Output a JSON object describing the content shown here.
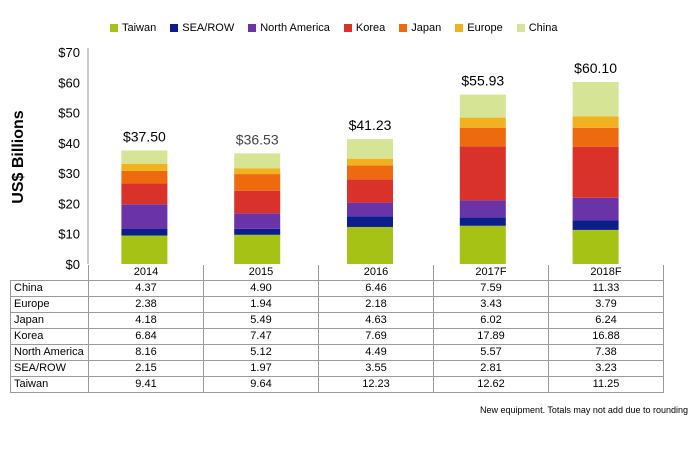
{
  "chart_data": {
    "type": "bar",
    "stacked": true,
    "ylabel": "US$ Billions",
    "ylim": [
      0,
      70
    ],
    "yticks": [
      "$0",
      "$10",
      "$20",
      "$30",
      "$40",
      "$50",
      "$60",
      "$70"
    ],
    "categories": [
      "2014",
      "2015",
      "2016",
      "2017F",
      "2018F"
    ],
    "totals": [
      "$37.50",
      "$36.53",
      "$41.23",
      "$55.93",
      "$60.10"
    ],
    "legend_position": "top",
    "series": [
      {
        "name": "Taiwan",
        "color": "#a6c214",
        "values": [
          9.41,
          9.64,
          12.23,
          12.62,
          11.25
        ]
      },
      {
        "name": "SEA/ROW",
        "color": "#0c1e8c",
        "values": [
          2.15,
          1.97,
          3.55,
          2.81,
          3.23
        ]
      },
      {
        "name": "North America",
        "color": "#6a34a8",
        "values": [
          8.16,
          5.12,
          4.49,
          5.57,
          7.38
        ]
      },
      {
        "name": "Korea",
        "color": "#d8322a",
        "values": [
          6.84,
          7.47,
          7.69,
          17.89,
          16.88
        ]
      },
      {
        "name": "Japan",
        "color": "#ee6a0e",
        "values": [
          4.18,
          5.49,
          4.63,
          6.02,
          6.24
        ]
      },
      {
        "name": "Europe",
        "color": "#f0b21e",
        "values": [
          2.38,
          1.94,
          2.18,
          3.43,
          3.79
        ]
      },
      {
        "name": "China",
        "color": "#d6e496",
        "values": [
          4.37,
          4.9,
          6.46,
          7.59,
          11.33
        ]
      }
    ],
    "table": {
      "row_order": [
        "China",
        "Europe",
        "Japan",
        "Korea",
        "North America",
        "SEA/ROW",
        "Taiwan"
      ],
      "rows": [
        {
          "label": "China",
          "cells": [
            "4.37",
            "4.90",
            "6.46",
            "7.59",
            "11.33"
          ]
        },
        {
          "label": "Europe",
          "cells": [
            "2.38",
            "1.94",
            "2.18",
            "3.43",
            "3.79"
          ]
        },
        {
          "label": "Japan",
          "cells": [
            "4.18",
            "5.49",
            "4.63",
            "6.02",
            "6.24"
          ]
        },
        {
          "label": "Korea",
          "cells": [
            "6.84",
            "7.47",
            "7.69",
            "17.89",
            "16.88"
          ]
        },
        {
          "label": "North America",
          "cells": [
            "8.16",
            "5.12",
            "4.49",
            "5.57",
            "7.38"
          ]
        },
        {
          "label": "SEA/ROW",
          "cells": [
            "2.15",
            "1.97",
            "3.55",
            "2.81",
            "3.23"
          ]
        },
        {
          "label": "Taiwan",
          "cells": [
            "9.41",
            "9.64",
            "12.23",
            "12.62",
            "11.25"
          ]
        }
      ]
    },
    "footnote": "New equipment. Totals may not add due to rounding"
  }
}
